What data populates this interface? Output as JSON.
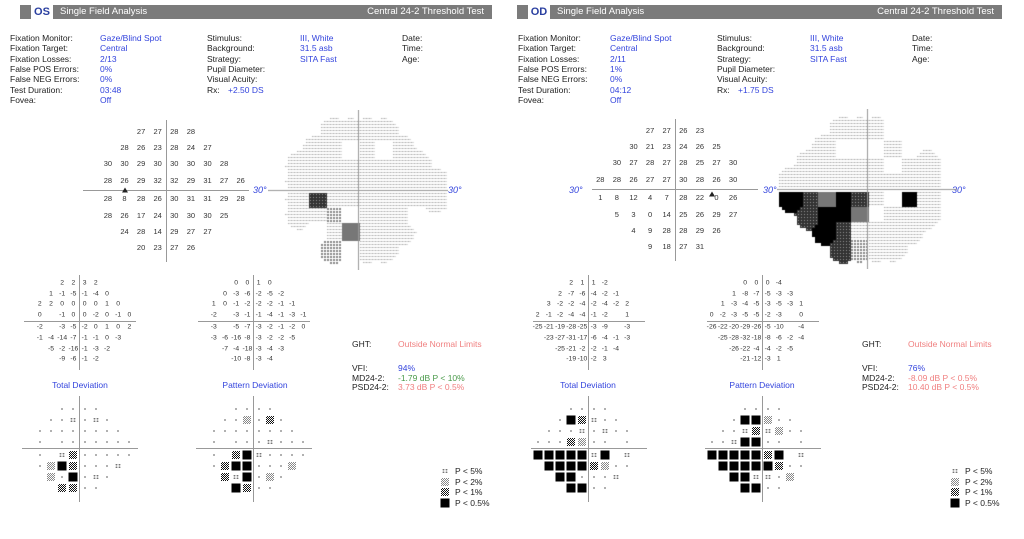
{
  "legend": {
    "p5": "P < 5%",
    "p2": "P < 2%",
    "p1": "P < 1%",
    "p05": "P < 0.5%"
  },
  "colors": {
    "accent": "#3344dd",
    "abnormal": "#f08080",
    "borderline": "#4a9a4a",
    "header": "#7b7b7b"
  },
  "axis_label": "30°",
  "eyes": [
    {
      "eye": "OS",
      "title": "Single Field Analysis",
      "test": "Central 24-2 Threshold Test",
      "info_left": [
        {
          "label": "Fixation Monitor:",
          "value": "Gaze/Blind Spot"
        },
        {
          "label": "Fixation Target:",
          "value": "Central"
        },
        {
          "label": "Fixation Losses:",
          "value": "2/13"
        },
        {
          "label": "False POS Errors:",
          "value": "0%"
        },
        {
          "label": "False NEG Errors:",
          "value": "0%"
        },
        {
          "label": "Test Duration:",
          "value": "03:48"
        }
      ],
      "info_mid": [
        {
          "label": "Stimulus:",
          "value": "III, White"
        },
        {
          "label": "Background:",
          "value": "31.5 asb"
        },
        {
          "label": "Strategy:",
          "value": "SITA Fast"
        },
        {
          "label": "Pupil Diameter:",
          "value": ""
        },
        {
          "label": "Visual Acuity:",
          "value": ""
        }
      ],
      "rx": {
        "label": "Rx:",
        "value": "+2.50 DS"
      },
      "info_right": [
        "Date:",
        "Time:",
        "Age:"
      ],
      "fovea": {
        "label": "Fovea:",
        "value": "Off"
      },
      "threshold": [
        [
          null,
          null,
          27,
          27,
          28,
          28,
          null,
          null,
          null
        ],
        [
          null,
          28,
          26,
          23,
          28,
          24,
          27,
          null,
          null
        ],
        [
          30,
          30,
          29,
          30,
          30,
          30,
          30,
          28,
          null
        ],
        [
          28,
          26,
          29,
          32,
          32,
          29,
          31,
          27,
          26
        ],
        [
          28,
          8,
          28,
          26,
          30,
          31,
          31,
          29,
          28
        ],
        [
          28,
          26,
          17,
          24,
          30,
          30,
          30,
          25,
          null
        ],
        [
          null,
          24,
          28,
          14,
          29,
          27,
          27,
          null,
          null
        ],
        [
          null,
          null,
          20,
          23,
          27,
          26,
          null,
          null,
          null
        ]
      ],
      "total_deviation_label": "Total Deviation",
      "total_deviation": [
        [
          null,
          null,
          2,
          2,
          3,
          2,
          null,
          null,
          null
        ],
        [
          null,
          1,
          -1,
          -5,
          -1,
          -4,
          0,
          null,
          null
        ],
        [
          2,
          2,
          0,
          0,
          0,
          0,
          1,
          0,
          null
        ],
        [
          0,
          null,
          -1,
          0,
          0,
          -2,
          0,
          -1,
          0
        ],
        [
          -2,
          null,
          -3,
          -5,
          -2,
          0,
          1,
          0,
          2
        ],
        [
          -1,
          -4,
          -14,
          -7,
          -1,
          -1,
          0,
          -3,
          null
        ],
        [
          null,
          -5,
          -2,
          -16,
          -1,
          -3,
          -2,
          null,
          null
        ],
        [
          null,
          null,
          -9,
          -6,
          -1,
          -2,
          null,
          null,
          null
        ]
      ],
      "pattern_deviation_label": "Pattern Deviation",
      "pattern_deviation": [
        [
          null,
          null,
          0,
          0,
          1,
          0,
          null,
          null,
          null
        ],
        [
          null,
          0,
          -3,
          -6,
          -2,
          -5,
          -2,
          null,
          null
        ],
        [
          1,
          0,
          -1,
          -2,
          -2,
          -2,
          -1,
          -1,
          null
        ],
        [
          -2,
          null,
          -3,
          -1,
          -1,
          -4,
          -1,
          -3,
          -1
        ],
        [
          -3,
          null,
          -5,
          -7,
          -3,
          -2,
          -1,
          -2,
          0
        ],
        [
          -3,
          -6,
          -16,
          -8,
          -3,
          -2,
          -2,
          -5,
          null
        ],
        [
          null,
          -7,
          -4,
          -18,
          -3,
          -4,
          -3,
          null,
          null
        ],
        [
          null,
          null,
          -10,
          -8,
          -3,
          -4,
          null,
          null,
          null
        ]
      ],
      "total_deviation_prob": [
        [
          null,
          null,
          "n",
          "n",
          "n",
          "n",
          null,
          null,
          null
        ],
        [
          null,
          "n",
          "n",
          "p5",
          "n",
          "p5",
          "n",
          null,
          null
        ],
        [
          "n",
          "n",
          "n",
          "n",
          "n",
          "n",
          "n",
          "n",
          null
        ],
        [
          "n",
          null,
          "n",
          "n",
          "n",
          "n",
          "n",
          "n",
          "n"
        ],
        [
          "n",
          null,
          "p5",
          "p1",
          "n",
          "n",
          "n",
          "n",
          "n"
        ],
        [
          "n",
          "p2",
          "p05",
          "p1",
          "n",
          "n",
          "n",
          "p5",
          null
        ],
        [
          null,
          "p2",
          "n",
          "p05",
          "n",
          "p5",
          "n",
          null,
          null
        ],
        [
          null,
          null,
          "p1",
          "p1",
          "n",
          "n",
          null,
          null,
          null
        ]
      ],
      "pattern_deviation_prob": [
        [
          null,
          null,
          "n",
          "n",
          "n",
          "n",
          null,
          null,
          null
        ],
        [
          null,
          "n",
          "n",
          "p2",
          "n",
          "p1",
          "n",
          null,
          null
        ],
        [
          "n",
          "n",
          "n",
          "n",
          "n",
          "n",
          "n",
          "n",
          null
        ],
        [
          "n",
          null,
          "n",
          "n",
          "n",
          "p5",
          "n",
          "n",
          "n"
        ],
        [
          "n",
          null,
          "p1",
          "p05",
          "p5",
          "n",
          "n",
          "n",
          "n"
        ],
        [
          "n",
          "p1",
          "p05",
          "p05",
          "n",
          "n",
          "n",
          "p2",
          null
        ],
        [
          null,
          "p1",
          "p5",
          "p05",
          "n",
          "p2",
          "n",
          null,
          null
        ],
        [
          null,
          null,
          "p05",
          "p1",
          "n",
          "n",
          null,
          null,
          null
        ]
      ],
      "ght": {
        "label": "GHT:",
        "value": "Outside Normal Limits"
      },
      "stats": [
        {
          "label": "VFI:",
          "value": "94%",
          "color": "#3344dd"
        },
        {
          "label": "MD24-2:",
          "value": "-1.79 dB P < 10%",
          "color": "#4a9a4a"
        },
        {
          "label": "PSD24-2:",
          "value": "3.73 dB P < 0.5%",
          "color": "#f08080"
        }
      ]
    },
    {
      "eye": "OD",
      "title": "Single Field Analysis",
      "test": "Central 24-2 Threshold Test",
      "info_left": [
        {
          "label": "Fixation Monitor:",
          "value": "Gaze/Blind Spot"
        },
        {
          "label": "Fixation Target:",
          "value": "Central"
        },
        {
          "label": "Fixation Losses:",
          "value": "2/11"
        },
        {
          "label": "False POS Errors:",
          "value": "1%"
        },
        {
          "label": "False NEG Errors:",
          "value": "0%"
        },
        {
          "label": "Test Duration:",
          "value": "04:12"
        }
      ],
      "info_mid": [
        {
          "label": "Stimulus:",
          "value": "III, White"
        },
        {
          "label": "Background:",
          "value": "31.5 asb"
        },
        {
          "label": "Strategy:",
          "value": "SITA Fast"
        },
        {
          "label": "Pupil Diameter:",
          "value": ""
        },
        {
          "label": "Visual Acuity:",
          "value": ""
        }
      ],
      "rx": {
        "label": "Rx:",
        "value": "+1.75 DS"
      },
      "info_right": [
        "Date:",
        "Time:",
        "Age:"
      ],
      "fovea": {
        "label": "Fovea:",
        "value": "Off"
      },
      "threshold": [
        [
          null,
          null,
          null,
          27,
          27,
          26,
          23,
          null,
          null
        ],
        [
          null,
          null,
          30,
          21,
          23,
          24,
          26,
          25,
          null
        ],
        [
          null,
          30,
          27,
          28,
          27,
          28,
          25,
          27,
          30
        ],
        [
          28,
          28,
          26,
          27,
          27,
          30,
          28,
          26,
          30
        ],
        [
          1,
          8,
          12,
          4,
          7,
          28,
          22,
          0,
          26
        ],
        [
          null,
          5,
          3,
          0,
          14,
          25,
          26,
          29,
          27
        ],
        [
          null,
          null,
          4,
          9,
          28,
          28,
          29,
          26,
          null
        ],
        [
          null,
          null,
          null,
          9,
          18,
          27,
          31,
          null,
          null
        ]
      ],
      "total_deviation_label": "Total Deviation",
      "total_deviation": [
        [
          null,
          null,
          null,
          2,
          1,
          1,
          -2,
          null,
          null
        ],
        [
          null,
          null,
          2,
          -7,
          -6,
          -4,
          -2,
          -1,
          null
        ],
        [
          null,
          3,
          -2,
          -2,
          -4,
          -2,
          -4,
          -2,
          2
        ],
        [
          2,
          -1,
          -2,
          -4,
          -4,
          -1,
          -2,
          null,
          1
        ],
        [
          -25,
          -21,
          -19,
          -28,
          -25,
          -3,
          -9,
          null,
          -3
        ],
        [
          null,
          -23,
          -27,
          -31,
          -17,
          -6,
          -4,
          -1,
          -3
        ],
        [
          null,
          null,
          -25,
          -21,
          -2,
          -2,
          -1,
          -4,
          null
        ],
        [
          null,
          null,
          null,
          -19,
          -10,
          -2,
          3,
          null,
          null
        ]
      ],
      "pattern_deviation_label": "Pattern Deviation",
      "pattern_deviation": [
        [
          null,
          null,
          null,
          0,
          0,
          0,
          -4,
          null,
          null
        ],
        [
          null,
          null,
          1,
          -8,
          -7,
          -5,
          -3,
          -3,
          null
        ],
        [
          null,
          1,
          -3,
          -4,
          -5,
          -3,
          -5,
          -3,
          1
        ],
        [
          0,
          -2,
          -3,
          -5,
          -5,
          -2,
          -3,
          null,
          0
        ],
        [
          -26,
          -22,
          -20,
          -29,
          -26,
          -5,
          -10,
          null,
          -4
        ],
        [
          null,
          -25,
          -28,
          -32,
          -18,
          -8,
          -6,
          -2,
          -4
        ],
        [
          null,
          null,
          -26,
          -22,
          -4,
          -4,
          -2,
          -5,
          null
        ],
        [
          null,
          null,
          null,
          -21,
          -12,
          -3,
          1,
          null,
          null
        ]
      ],
      "total_deviation_prob": [
        [
          null,
          null,
          null,
          "n",
          "n",
          "n",
          "n",
          null,
          null
        ],
        [
          null,
          null,
          "n",
          "p05",
          "p1",
          "p5",
          "n",
          "n",
          null
        ],
        [
          null,
          "n",
          "n",
          "n",
          "p5",
          "n",
          "p5",
          "n",
          "n"
        ],
        [
          "n",
          "n",
          "n",
          "p1",
          "p2",
          "n",
          "n",
          null,
          "n"
        ],
        [
          "p05",
          "p05",
          "p05",
          "p05",
          "p05",
          "p5",
          "p05",
          null,
          "p5"
        ],
        [
          null,
          "p05",
          "p05",
          "p05",
          "p05",
          "p1",
          "p2",
          "n",
          "n"
        ],
        [
          null,
          null,
          "p05",
          "p05",
          "n",
          "n",
          "n",
          "p5",
          null
        ],
        [
          null,
          null,
          null,
          "p05",
          "p05",
          "n",
          "n",
          null,
          null
        ]
      ],
      "pattern_deviation_prob": [
        [
          null,
          null,
          null,
          "n",
          "n",
          "n",
          "n",
          null,
          null
        ],
        [
          null,
          null,
          "n",
          "p05",
          "p05",
          "p2",
          "n",
          "n",
          null
        ],
        [
          null,
          "n",
          "n",
          "p5",
          "p1",
          "p5",
          "p2",
          "n",
          "n"
        ],
        [
          "n",
          "n",
          "p5",
          "p05",
          "p05",
          "n",
          "n",
          null,
          "n"
        ],
        [
          "p05",
          "p05",
          "p05",
          "p05",
          "p05",
          "p1",
          "p05",
          null,
          "p5"
        ],
        [
          null,
          "p05",
          "p05",
          "p05",
          "p05",
          "p05",
          "p1",
          "n",
          "n"
        ],
        [
          null,
          null,
          "p05",
          "p05",
          "p5",
          "p5",
          "n",
          "p2",
          null
        ],
        [
          null,
          null,
          null,
          "p05",
          "p05",
          "n",
          "n",
          null,
          null
        ]
      ],
      "ght": {
        "label": "GHT:",
        "value": "Outside Normal Limits"
      },
      "stats": [
        {
          "label": "VFI:",
          "value": "76%",
          "color": "#3344dd"
        },
        {
          "label": "MD24-2:",
          "value": "-8.09 dB P < 0.5%",
          "color": "#f08080"
        },
        {
          "label": "PSD24-2:",
          "value": "10.40 dB P < 0.5%",
          "color": "#f08080"
        }
      ]
    }
  ]
}
